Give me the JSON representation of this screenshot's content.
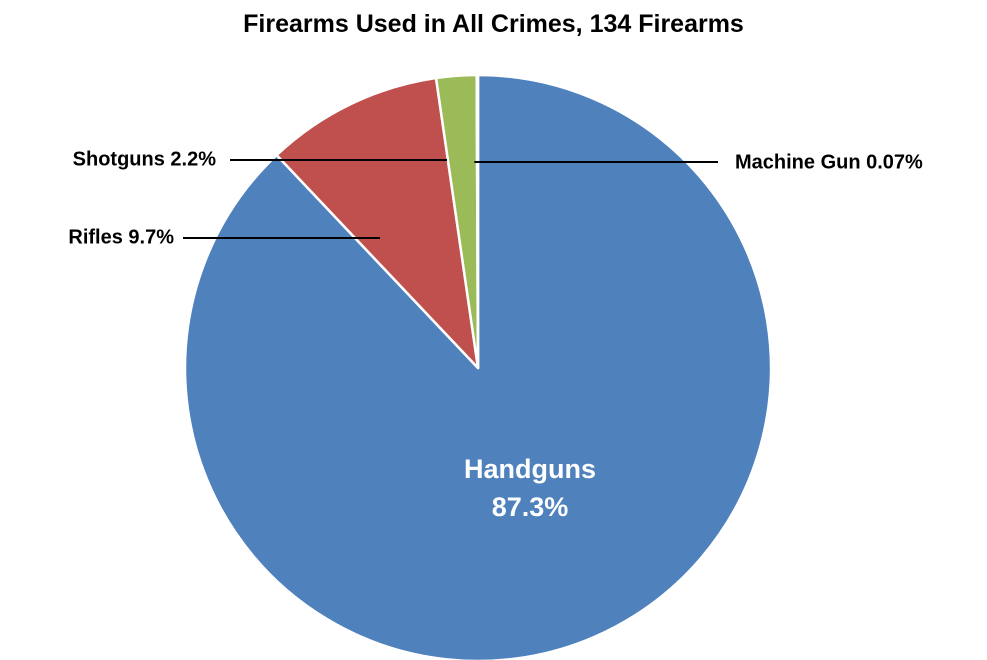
{
  "chart_data": {
    "type": "pie",
    "title": "Firearms Used in All Crimes, 134 Firearms",
    "slices": [
      {
        "name": "Handguns",
        "value": 87.3,
        "label": "87.3%",
        "color": "#4F81BD",
        "label_inside": true
      },
      {
        "name": "Rifles",
        "value": 9.7,
        "label": "9.7%",
        "color": "#C0504D",
        "label_inside": false,
        "label_side": "left"
      },
      {
        "name": "Shotguns",
        "value": 2.2,
        "label": "2.2%",
        "color": "#9BBB59",
        "label_inside": false,
        "label_side": "left"
      },
      {
        "name": "Machine Gun",
        "value": 0.07,
        "label": "0.07%",
        "color": "#8064A2",
        "label_inside": false,
        "label_side": "right"
      }
    ],
    "start_angle_deg": 0,
    "direction": "clockwise",
    "legend": "none"
  }
}
